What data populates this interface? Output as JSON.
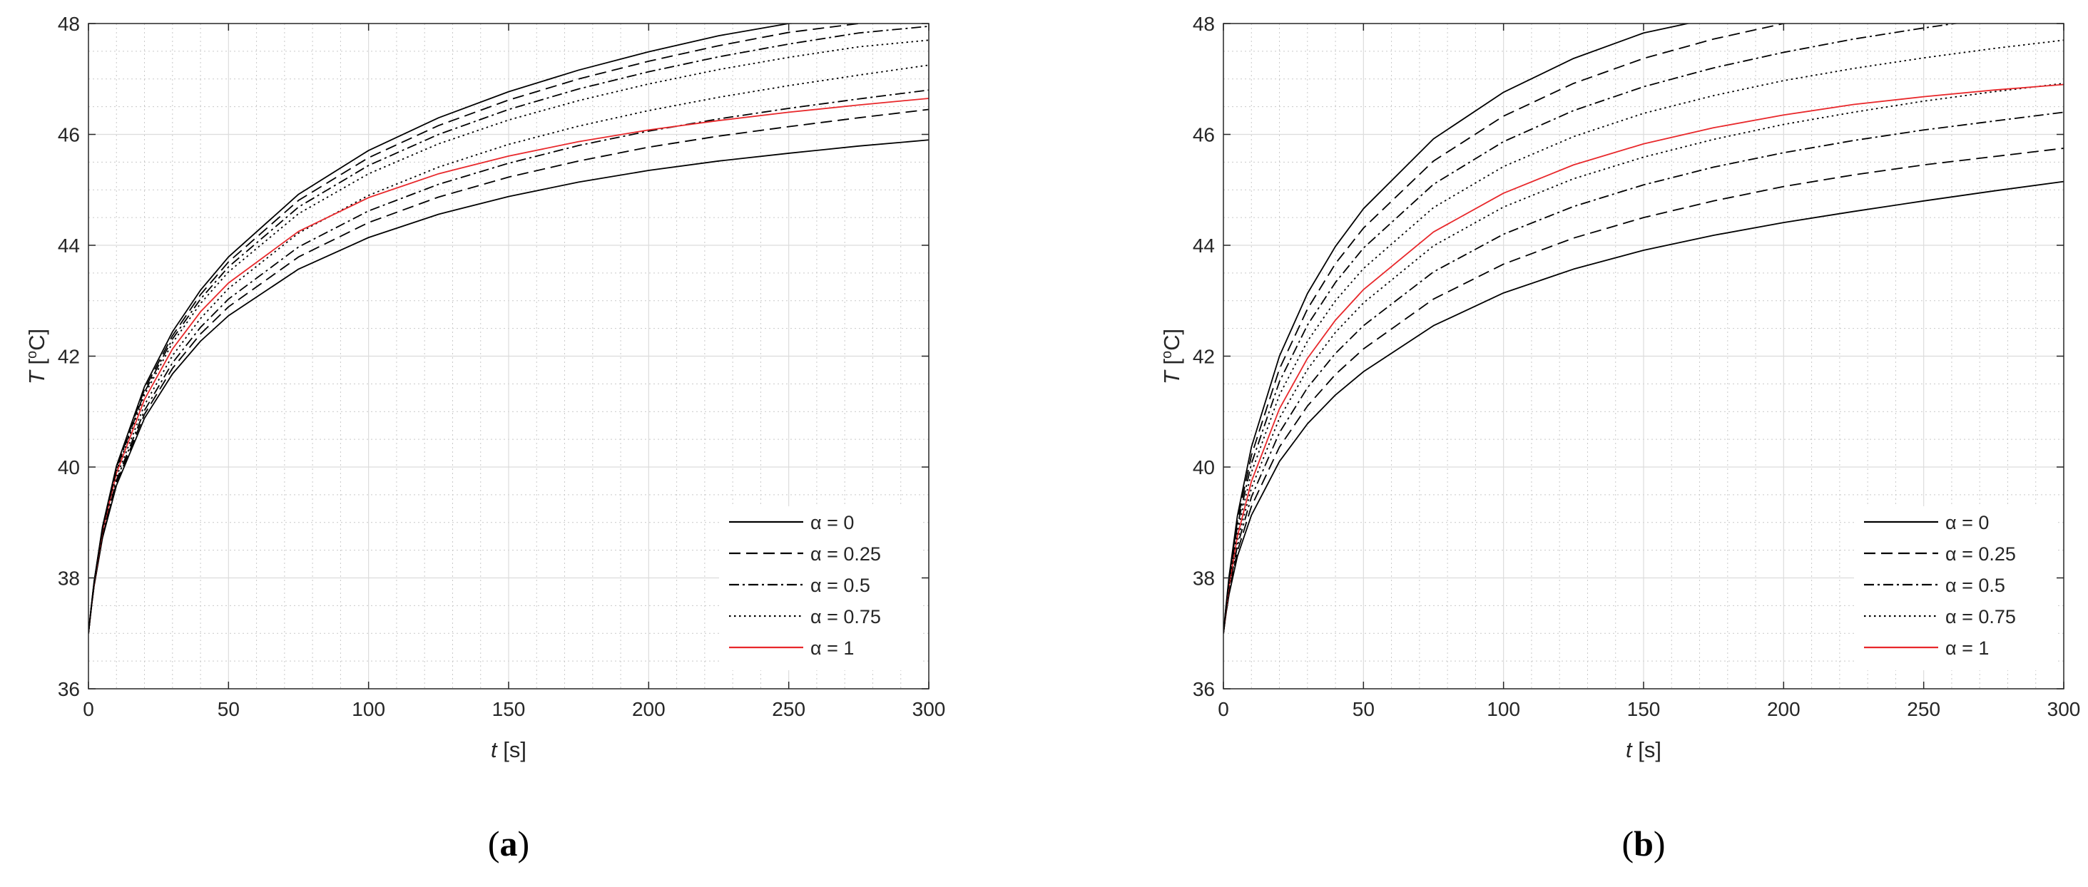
{
  "chart_data": [
    {
      "type": "line",
      "panel_label_open": "(",
      "panel_label_letter": "a",
      "panel_label_close": ")",
      "xlabel_var": "t",
      "xlabel_unit": " [s]",
      "ylabel_var": "T",
      "ylabel_unit_open": " [",
      "ylabel_unit_sup": "o",
      "ylabel_unit_rest": "C]",
      "xlim": [
        0,
        300
      ],
      "ylim": [
        36,
        48
      ],
      "xticks": [
        "0",
        "50",
        "100",
        "150",
        "200",
        "250",
        "300"
      ],
      "yticks": [
        "36",
        "38",
        "40",
        "42",
        "44",
        "46",
        "48"
      ],
      "grid": true,
      "minor_grid": true,
      "legend_position": "bottom-right",
      "x": [
        0,
        1,
        2,
        5,
        10,
        20,
        30,
        40,
        50,
        75,
        100,
        125,
        150,
        175,
        200,
        225,
        250,
        275,
        300
      ],
      "series": [
        {
          "legend": "α = 0",
          "style": "solid",
          "color": "#000000",
          "values": [
            37,
            37.45,
            37.85,
            38.72,
            39.67,
            40.88,
            41.68,
            42.27,
            42.73,
            43.57,
            44.14,
            44.56,
            44.88,
            45.14,
            45.35,
            45.52,
            45.66,
            45.79,
            45.9
          ]
        },
        {
          "legend": "α = 0.25",
          "style": "dashed",
          "color": "#000000",
          "values": [
            37,
            37.45,
            37.86,
            38.74,
            39.71,
            40.95,
            41.78,
            42.4,
            42.89,
            43.79,
            44.41,
            44.87,
            45.23,
            45.52,
            45.77,
            45.97,
            46.14,
            46.3,
            46.45
          ]
        },
        {
          "legend": "α = 0.5",
          "style": "dashdot",
          "color": "#000000",
          "values": [
            37,
            37.46,
            37.87,
            38.77,
            39.76,
            41.02,
            41.88,
            42.52,
            43.03,
            43.97,
            44.62,
            45.1,
            45.48,
            45.8,
            46.06,
            46.28,
            46.47,
            46.64,
            46.8
          ]
        },
        {
          "legend": "α = 0.75",
          "style": "dotted",
          "color": "#000000",
          "values": [
            37,
            37.46,
            37.88,
            38.8,
            39.82,
            41.12,
            42.01,
            42.68,
            43.22,
            44.22,
            44.9,
            45.41,
            45.82,
            46.15,
            46.43,
            46.67,
            46.88,
            47.07,
            47.25
          ]
        },
        {
          "legend": "α = 1",
          "style": "solid",
          "color": "#e8282b",
          "values": [
            37,
            37.47,
            37.89,
            38.84,
            39.89,
            41.22,
            42.13,
            42.8,
            43.32,
            44.25,
            44.86,
            45.29,
            45.61,
            45.87,
            46.08,
            46.25,
            46.4,
            46.53,
            46.65
          ]
        },
        {
          "style": "dotted",
          "color": "#000000",
          "values": [
            37,
            37.47,
            37.9,
            38.86,
            39.93,
            41.3,
            42.24,
            42.95,
            43.52,
            44.57,
            45.29,
            45.83,
            46.26,
            46.61,
            46.91,
            47.17,
            47.39,
            47.58,
            47.7
          ]
        },
        {
          "style": "dashdot",
          "color": "#000000",
          "values": [
            37,
            37.47,
            37.91,
            38.88,
            39.96,
            41.35,
            42.31,
            43.03,
            43.61,
            44.69,
            45.44,
            46.0,
            46.45,
            46.82,
            47.13,
            47.4,
            47.63,
            47.83,
            47.95
          ]
        },
        {
          "style": "dashed",
          "color": "#000000",
          "values": [
            37,
            37.48,
            37.92,
            38.9,
            39.99,
            41.4,
            42.37,
            43.11,
            43.7,
            44.81,
            45.58,
            46.16,
            46.62,
            47.0,
            47.32,
            47.6,
            47.84,
            48.0,
            48.1
          ]
        },
        {
          "style": "solid",
          "color": "#000000",
          "values": [
            37,
            37.48,
            37.93,
            38.92,
            40.02,
            41.45,
            42.44,
            43.19,
            43.79,
            44.92,
            45.71,
            46.3,
            46.77,
            47.16,
            47.49,
            47.78,
            48.0,
            48.1,
            48.2
          ]
        }
      ]
    },
    {
      "type": "line",
      "panel_label_open": "(",
      "panel_label_letter": "b",
      "panel_label_close": ")",
      "xlabel_var": "t",
      "xlabel_unit": " [s]",
      "ylabel_var": "T",
      "ylabel_unit_open": " [",
      "ylabel_unit_sup": "o",
      "ylabel_unit_rest": "C]",
      "xlim": [
        0,
        300
      ],
      "ylim": [
        36,
        48
      ],
      "xticks": [
        "0",
        "50",
        "100",
        "150",
        "200",
        "250",
        "300"
      ],
      "yticks": [
        "36",
        "38",
        "40",
        "42",
        "44",
        "46",
        "48"
      ],
      "grid": true,
      "minor_grid": true,
      "legend_position": "bottom-right",
      "x": [
        0,
        1,
        2,
        5,
        10,
        20,
        30,
        40,
        50,
        75,
        100,
        125,
        150,
        175,
        200,
        225,
        250,
        275,
        300
      ],
      "series": [
        {
          "legend": "α = 0",
          "style": "solid",
          "color": "#000000",
          "values": [
            37,
            37.38,
            37.7,
            38.39,
            39.13,
            40.1,
            40.78,
            41.3,
            41.72,
            42.55,
            43.14,
            43.57,
            43.91,
            44.18,
            44.41,
            44.61,
            44.8,
            44.98,
            45.15
          ]
        },
        {
          "legend": "α = 0.25",
          "style": "dashed",
          "color": "#000000",
          "values": [
            37,
            37.4,
            37.74,
            38.48,
            39.29,
            40.36,
            41.1,
            41.67,
            42.13,
            43.03,
            43.66,
            44.13,
            44.5,
            44.8,
            45.06,
            45.27,
            45.45,
            45.6,
            45.75
          ]
        },
        {
          "legend": "α = 0.5",
          "style": "dashdot",
          "color": "#000000",
          "values": [
            37,
            37.42,
            37.79,
            38.58,
            39.46,
            40.62,
            41.43,
            42.05,
            42.55,
            43.52,
            44.2,
            44.7,
            45.09,
            45.41,
            45.67,
            45.89,
            46.08,
            46.24,
            46.4
          ]
        },
        {
          "legend": "α = 0.75",
          "style": "dotted",
          "color": "#000000",
          "values": [
            37,
            37.44,
            37.83,
            38.67,
            39.62,
            40.88,
            41.76,
            42.43,
            42.96,
            43.99,
            44.69,
            45.2,
            45.59,
            45.91,
            46.18,
            46.4,
            46.6,
            46.77,
            46.92
          ]
        },
        {
          "legend": "α = 1",
          "style": "solid",
          "color": "#e8282b",
          "values": [
            37,
            37.45,
            37.86,
            38.75,
            39.74,
            41.05,
            41.96,
            42.65,
            43.2,
            44.24,
            44.94,
            45.45,
            45.83,
            46.12,
            46.35,
            46.54,
            46.68,
            46.8,
            46.9
          ]
        },
        {
          "style": "dotted",
          "color": "#000000",
          "values": [
            37,
            37.47,
            37.9,
            38.84,
            39.9,
            41.3,
            42.27,
            43.0,
            43.58,
            44.68,
            45.42,
            45.96,
            46.38,
            46.7,
            46.97,
            47.19,
            47.38,
            47.55,
            47.7
          ]
        },
        {
          "style": "dashdot",
          "color": "#000000",
          "values": [
            37,
            37.49,
            37.94,
            38.94,
            40.06,
            41.54,
            42.56,
            43.33,
            43.95,
            45.1,
            45.87,
            46.43,
            46.86,
            47.2,
            47.48,
            47.72,
            47.92,
            48.1,
            48.2
          ]
        },
        {
          "style": "dashed",
          "color": "#000000",
          "values": [
            37,
            37.51,
            37.98,
            39.03,
            40.21,
            41.77,
            42.85,
            43.67,
            44.31,
            45.52,
            46.33,
            46.92,
            47.37,
            47.72,
            48.0,
            48.2,
            48.3,
            48.4,
            48.5
          ]
        },
        {
          "style": "solid",
          "color": "#000000",
          "values": [
            37,
            37.53,
            38.02,
            39.12,
            40.36,
            42.0,
            43.13,
            43.98,
            44.66,
            45.92,
            46.76,
            47.37,
            47.83,
            48.1,
            48.3,
            48.4,
            48.5,
            48.6,
            48.7
          ]
        }
      ]
    }
  ]
}
